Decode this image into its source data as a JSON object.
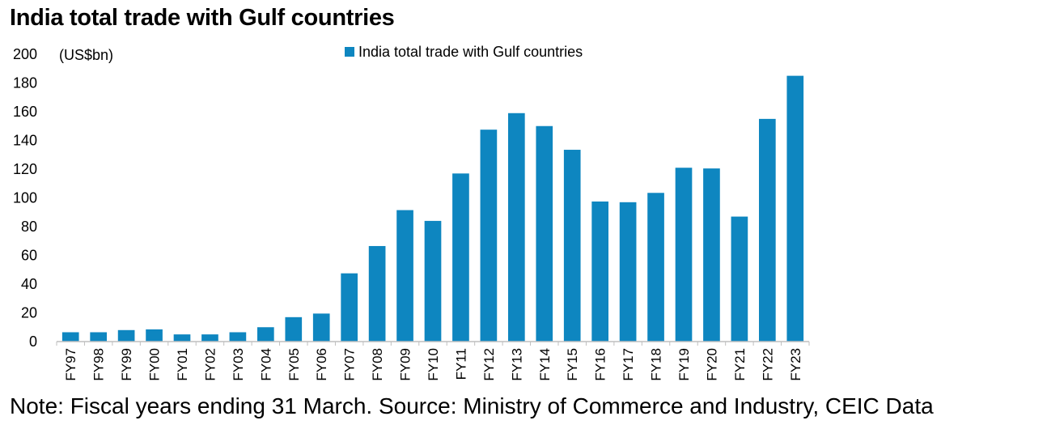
{
  "title": "India total trade with Gulf countries",
  "note": "Note: Fiscal years ending 31 March. Source: Ministry of Commerce and Industry, CEIC Data",
  "colors": {
    "bar": "#0e86c0",
    "axis": "#bfbfbf",
    "text": "#000000"
  },
  "chart_data": {
    "type": "bar",
    "title": "India total trade with Gulf countries",
    "unit_label": "(US$bn)",
    "xlabel": "",
    "ylabel": "",
    "ylim": [
      0,
      200
    ],
    "yticks": [
      0,
      20,
      40,
      60,
      80,
      100,
      120,
      140,
      160,
      180,
      200
    ],
    "grid": false,
    "legend_position": "top-center",
    "categories": [
      "FY97",
      "FY98",
      "FY99",
      "FY00",
      "FY01",
      "FY02",
      "FY03",
      "FY04",
      "FY05",
      "FY06",
      "FY07",
      "FY08",
      "FY09",
      "FY10",
      "FY11",
      "FY12",
      "FY13",
      "FY14",
      "FY15",
      "FY16",
      "FY17",
      "FY18",
      "FY19",
      "FY20",
      "FY21",
      "FY22",
      "FY23"
    ],
    "series": [
      {
        "name": "India total trade with Gulf countries",
        "values": [
          6.5,
          6.5,
          8,
          8.5,
          5,
          5,
          6.5,
          10,
          17,
          19.5,
          47.5,
          66.5,
          91.5,
          84,
          117,
          147.5,
          159,
          150,
          133.5,
          97.5,
          97,
          103.5,
          121,
          120.5,
          87,
          155,
          185
        ]
      }
    ]
  }
}
